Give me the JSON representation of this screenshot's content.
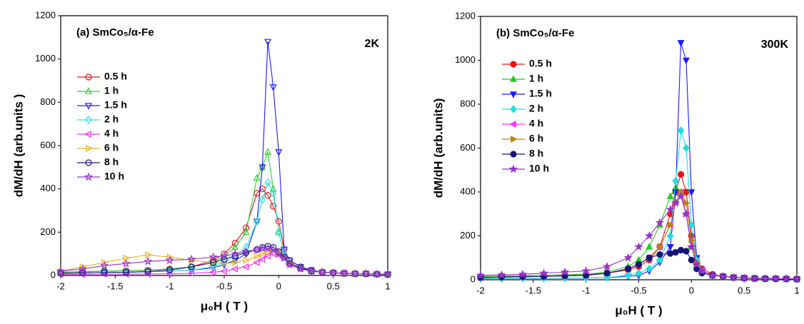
{
  "chart_data": [
    {
      "type": "line",
      "title": "(a) SmCo₅/α-Fe",
      "annotation": "2K",
      "xlabel": "μ₀H ( T )",
      "ylabel": "dM/dH (arb.units )",
      "markers": "open",
      "x": [
        -2,
        -1.8,
        -1.6,
        -1.4,
        -1.2,
        -1,
        -0.8,
        -0.6,
        -0.5,
        -0.4,
        -0.3,
        -0.2,
        -0.15,
        -0.1,
        -0.05,
        0,
        0.05,
        0.1,
        0.2,
        0.3,
        0.4,
        0.5,
        0.6,
        0.7,
        0.8,
        0.9,
        1
      ],
      "xlim": [
        -2,
        1
      ],
      "xticks": [
        -2,
        -1.5,
        -1,
        -0.5,
        0,
        0.5,
        1
      ],
      "ylim": [
        0,
        1200
      ],
      "yticks": [
        0,
        200,
        400,
        600,
        800,
        1000,
        1200
      ],
      "series": [
        {
          "name": "0.5 h",
          "color": "#e8141b",
          "marker": "circle",
          "values": [
            15,
            18,
            20,
            22,
            25,
            30,
            40,
            70,
            100,
            150,
            220,
            380,
            400,
            370,
            320,
            250,
            120,
            70,
            40,
            25,
            15,
            12,
            10,
            8,
            8,
            6,
            5
          ]
        },
        {
          "name": "1 h",
          "color": "#33cc33",
          "marker": "triangle-up",
          "values": [
            15,
            18,
            20,
            22,
            25,
            30,
            40,
            60,
            90,
            130,
            200,
            450,
            500,
            570,
            400,
            200,
            100,
            60,
            35,
            20,
            15,
            12,
            10,
            8,
            8,
            6,
            5
          ]
        },
        {
          "name": "1.5 h",
          "color": "#1a1aff",
          "marker": "triangle-down",
          "values": [
            10,
            12,
            14,
            15,
            18,
            20,
            25,
            35,
            50,
            70,
            100,
            250,
            500,
            1080,
            870,
            570,
            120,
            70,
            40,
            25,
            15,
            12,
            10,
            8,
            8,
            6,
            5
          ]
        },
        {
          "name": "2 h",
          "color": "#33dede",
          "marker": "diamond",
          "values": [
            10,
            12,
            14,
            15,
            18,
            20,
            25,
            40,
            60,
            90,
            130,
            250,
            350,
            430,
            380,
            200,
            100,
            60,
            35,
            20,
            15,
            12,
            10,
            8,
            8,
            6,
            5
          ]
        },
        {
          "name": "4 h",
          "color": "#ee33ee",
          "marker": "triangle-left",
          "values": [
            5,
            5,
            6,
            6,
            7,
            8,
            10,
            15,
            20,
            30,
            40,
            60,
            75,
            90,
            100,
            95,
            80,
            50,
            30,
            20,
            15,
            12,
            10,
            8,
            8,
            6,
            5
          ]
        },
        {
          "name": "6 h",
          "color": "#e6b422",
          "marker": "triangle-right",
          "values": [
            20,
            40,
            60,
            80,
            95,
            85,
            70,
            60,
            55,
            60,
            70,
            90,
            100,
            110,
            120,
            110,
            90,
            60,
            35,
            20,
            15,
            12,
            10,
            8,
            8,
            6,
            5
          ]
        },
        {
          "name": "8 h",
          "color": "#1a1a80",
          "marker": "circle",
          "values": [
            10,
            12,
            14,
            15,
            18,
            25,
            40,
            60,
            75,
            90,
            105,
            120,
            130,
            135,
            130,
            110,
            85,
            55,
            35,
            20,
            15,
            12,
            10,
            8,
            8,
            6,
            5
          ]
        },
        {
          "name": "10 h",
          "color": "#9933cc",
          "marker": "star",
          "values": [
            20,
            30,
            45,
            55,
            65,
            70,
            75,
            85,
            90,
            100,
            110,
            120,
            125,
            125,
            120,
            100,
            80,
            50,
            30,
            20,
            15,
            12,
            10,
            8,
            8,
            6,
            5
          ]
        }
      ]
    },
    {
      "type": "line",
      "title": "(b) SmCo₅/α-Fe",
      "annotation": "300K",
      "xlabel": "μ₀H ( T )",
      "ylabel": "dM/dH (arb.units)",
      "markers": "filled",
      "x": [
        -2,
        -1.8,
        -1.6,
        -1.4,
        -1.2,
        -1,
        -0.8,
        -0.6,
        -0.5,
        -0.4,
        -0.3,
        -0.2,
        -0.15,
        -0.1,
        -0.05,
        0,
        0.05,
        0.1,
        0.2,
        0.3,
        0.4,
        0.5,
        0.6,
        0.7,
        0.8,
        0.9,
        1
      ],
      "xlim": [
        -2,
        1
      ],
      "xticks": [
        -2,
        -1.5,
        -1,
        -0.5,
        0,
        0.5,
        1
      ],
      "ylim": [
        0,
        1200
      ],
      "yticks": [
        0,
        200,
        400,
        600,
        800,
        1000,
        1200
      ],
      "series": [
        {
          "name": "0.5 h",
          "color": "#e8141b",
          "marker": "circle",
          "values": [
            15,
            17,
            18,
            20,
            22,
            25,
            30,
            45,
            60,
            90,
            150,
            300,
            400,
            480,
            400,
            200,
            90,
            50,
            25,
            15,
            10,
            8,
            6,
            5,
            5,
            4,
            3
          ]
        },
        {
          "name": "1 h",
          "color": "#22cc22",
          "marker": "triangle-up",
          "values": [
            15,
            17,
            18,
            20,
            22,
            25,
            35,
            60,
            90,
            150,
            250,
            380,
            420,
            400,
            300,
            150,
            70,
            40,
            20,
            15,
            10,
            8,
            6,
            5,
            5,
            4,
            3
          ]
        },
        {
          "name": "1.5 h",
          "color": "#1a1aff",
          "marker": "triangle-down",
          "values": [
            5,
            5,
            6,
            6,
            7,
            8,
            10,
            15,
            20,
            40,
            80,
            150,
            400,
            1080,
            1000,
            400,
            100,
            40,
            20,
            15,
            10,
            8,
            6,
            5,
            5,
            4,
            3
          ]
        },
        {
          "name": "2 h",
          "color": "#22dddd",
          "marker": "diamond",
          "values": [
            5,
            5,
            6,
            6,
            7,
            8,
            10,
            20,
            30,
            50,
            90,
            200,
            450,
            680,
            600,
            250,
            90,
            40,
            20,
            15,
            10,
            8,
            6,
            5,
            5,
            4,
            3
          ]
        },
        {
          "name": "4 h",
          "color": "#ff33ff",
          "marker": "triangle-left",
          "values": [
            10,
            12,
            14,
            15,
            18,
            20,
            30,
            50,
            70,
            100,
            150,
            250,
            350,
            400,
            300,
            150,
            70,
            40,
            20,
            15,
            10,
            8,
            6,
            5,
            5,
            4,
            3
          ]
        },
        {
          "name": "6 h",
          "color": "#b8860b",
          "marker": "triangle-right",
          "values": [
            10,
            12,
            14,
            15,
            18,
            20,
            30,
            50,
            70,
            100,
            150,
            250,
            350,
            400,
            350,
            180,
            80,
            40,
            20,
            15,
            10,
            8,
            6,
            5,
            5,
            4,
            3
          ]
        },
        {
          "name": "8 h",
          "color": "#14147a",
          "marker": "circle",
          "values": [
            10,
            12,
            14,
            15,
            18,
            20,
            30,
            50,
            70,
            100,
            115,
            120,
            125,
            135,
            130,
            90,
            50,
            30,
            20,
            15,
            10,
            8,
            6,
            5,
            5,
            4,
            3
          ]
        },
        {
          "name": "10 h",
          "color": "#9933cc",
          "marker": "star",
          "values": [
            20,
            22,
            25,
            30,
            35,
            40,
            60,
            100,
            150,
            200,
            260,
            320,
            350,
            380,
            300,
            150,
            70,
            40,
            20,
            15,
            10,
            8,
            6,
            5,
            5,
            4,
            3
          ]
        }
      ]
    }
  ]
}
